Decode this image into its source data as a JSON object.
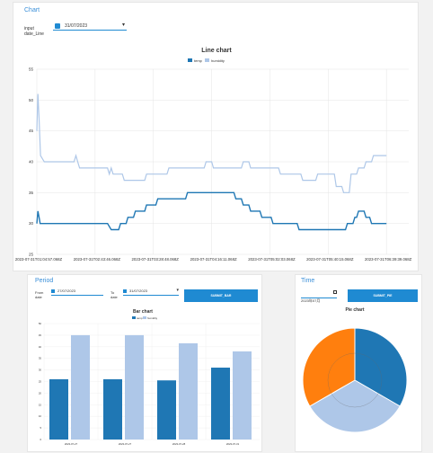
{
  "main_chart": {
    "panel_title": "Chart",
    "input_label_line1": "input",
    "input_label_line2": "date_Line",
    "date_value": "31/07/2023",
    "colors": {
      "temp": "#1f77b4",
      "humidity": "#aec7e8",
      "accent": "#3a8fd8"
    },
    "chart_data": {
      "type": "line",
      "title": "Line chart",
      "legend_position": "top",
      "grid": true,
      "ylim": [
        25,
        55
      ],
      "yticks": [
        25,
        30,
        35,
        40,
        45,
        50,
        55
      ],
      "x_tick_labels": [
        "2023-07-31T01:04:57.068Z",
        "2023-07-31T02:43:46.068Z",
        "2023-07-31T03:28:48.068Z",
        "2023-07-31T04:16:11.068Z",
        "2023-07-31T05:02:03.068Z",
        "2023-07-31T05:40:15.068Z",
        "2023-07-31T06:39:39.068Z"
      ],
      "x_range": [
        0,
        100
      ],
      "series": [
        {
          "name": "temp",
          "points": [
            [
              0,
              30
            ],
            [
              0.3,
              32
            ],
            [
              0.6,
              31
            ],
            [
              0.9,
              30
            ],
            [
              5,
              30
            ],
            [
              19,
              30
            ],
            [
              20,
              29
            ],
            [
              22,
              29
            ],
            [
              22.5,
              30
            ],
            [
              24,
              30
            ],
            [
              24.5,
              31
            ],
            [
              26,
              31
            ],
            [
              26.5,
              32
            ],
            [
              29,
              32
            ],
            [
              29.5,
              33
            ],
            [
              32,
              33
            ],
            [
              32.5,
              34
            ],
            [
              40,
              34
            ],
            [
              40.5,
              35
            ],
            [
              53,
              35
            ],
            [
              53.5,
              34
            ],
            [
              55,
              34
            ],
            [
              55.5,
              33
            ],
            [
              57,
              33
            ],
            [
              57.5,
              32
            ],
            [
              60,
              32
            ],
            [
              60.5,
              31
            ],
            [
              63,
              31
            ],
            [
              63.5,
              30
            ],
            [
              70,
              30
            ],
            [
              70.5,
              29
            ],
            [
              83,
              29
            ],
            [
              83.5,
              30
            ],
            [
              85,
              30
            ],
            [
              85.5,
              31
            ],
            [
              86,
              31
            ],
            [
              86.5,
              32
            ],
            [
              88,
              32
            ],
            [
              88.5,
              31
            ],
            [
              89.5,
              31
            ],
            [
              90,
              30
            ],
            [
              94,
              30
            ]
          ]
        },
        {
          "name": "humidity",
          "points": [
            [
              0,
              45
            ],
            [
              0.3,
              51
            ],
            [
              0.6,
              47
            ],
            [
              1,
              41
            ],
            [
              2,
              40
            ],
            [
              10,
              40
            ],
            [
              10.5,
              41
            ],
            [
              11,
              40
            ],
            [
              11.5,
              39
            ],
            [
              19,
              39
            ],
            [
              19.5,
              38
            ],
            [
              20,
              39
            ],
            [
              20.5,
              38
            ],
            [
              23,
              38
            ],
            [
              23.5,
              37
            ],
            [
              29,
              37
            ],
            [
              29.5,
              38
            ],
            [
              35,
              38
            ],
            [
              35.5,
              39
            ],
            [
              45,
              39
            ],
            [
              45.5,
              40
            ],
            [
              47,
              40
            ],
            [
              47.5,
              39
            ],
            [
              55,
              39
            ],
            [
              55.5,
              40
            ],
            [
              57,
              40
            ],
            [
              57.5,
              39
            ],
            [
              65,
              39
            ],
            [
              65.5,
              38
            ],
            [
              71,
              38
            ],
            [
              71.5,
              37
            ],
            [
              75,
              37
            ],
            [
              75.5,
              38
            ],
            [
              80,
              38
            ],
            [
              80.5,
              36
            ],
            [
              82,
              36
            ],
            [
              82.5,
              35
            ],
            [
              84,
              35
            ],
            [
              84.5,
              38
            ],
            [
              86,
              38
            ],
            [
              86.5,
              39
            ],
            [
              88,
              39
            ],
            [
              88.5,
              40
            ],
            [
              90,
              40
            ],
            [
              90.5,
              41
            ],
            [
              94,
              41
            ]
          ]
        }
      ]
    }
  },
  "period": {
    "panel_title": "Period",
    "from_label": "From",
    "from_sub": "date",
    "from_value": "27/07/2023",
    "to_label": "To",
    "to_sub": "date",
    "to_value": "31/07/2023",
    "submit_label": "SUBMIT_BAR",
    "chart_data": {
      "type": "bar",
      "title": "Bar chart",
      "legend_position": "top",
      "grid": true,
      "categories": [
        "2023-07-27",
        "2023-07-27",
        "2023-07-28",
        "2023-07-31"
      ],
      "ylim": [
        0,
        50
      ],
      "yticks": [
        0,
        5,
        10,
        15,
        20,
        25,
        30,
        35,
        40,
        45,
        50
      ],
      "series": [
        {
          "name": "temp",
          "values": [
            26,
            26,
            25.5,
            31
          ]
        },
        {
          "name": "humidity",
          "values": [
            45,
            45,
            41.5,
            38
          ]
        }
      ]
    }
  },
  "time": {
    "panel_title": "Time",
    "time_value": "2023年07月",
    "submit_label": "SUBMIT_PIE",
    "chart_data": {
      "type": "pie",
      "title": "Pie chart",
      "slices": [
        {
          "value": 120,
          "color": "#1f77b4"
        },
        {
          "value": 120,
          "color": "#aec7e8"
        },
        {
          "value": 120,
          "color": "#ff7f0e"
        }
      ]
    }
  }
}
